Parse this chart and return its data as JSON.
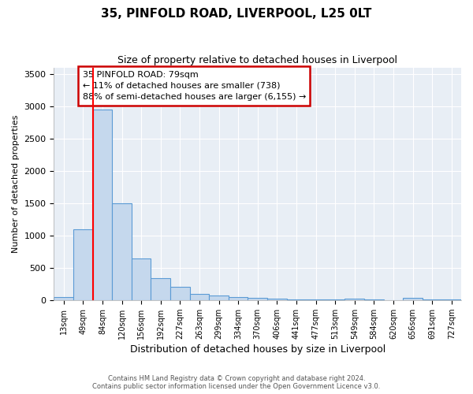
{
  "title": "35, PINFOLD ROAD, LIVERPOOL, L25 0LT",
  "subtitle": "Size of property relative to detached houses in Liverpool",
  "xlabel": "Distribution of detached houses by size in Liverpool",
  "ylabel": "Number of detached properties",
  "bin_labels": [
    "13sqm",
    "49sqm",
    "84sqm",
    "120sqm",
    "156sqm",
    "192sqm",
    "227sqm",
    "263sqm",
    "299sqm",
    "334sqm",
    "370sqm",
    "406sqm",
    "441sqm",
    "477sqm",
    "513sqm",
    "549sqm",
    "584sqm",
    "620sqm",
    "656sqm",
    "691sqm",
    "727sqm"
  ],
  "bar_heights": [
    50,
    1100,
    2950,
    1500,
    640,
    340,
    210,
    100,
    70,
    50,
    40,
    20,
    15,
    10,
    8,
    25,
    5,
    3,
    30,
    5,
    5
  ],
  "bar_color": "#c5d8ed",
  "bar_edge_color": "#5b9bd5",
  "annotation_text_line1": "35 PINFOLD ROAD: 79sqm",
  "annotation_text_line2": "← 11% of detached houses are smaller (738)",
  "annotation_text_line3": "88% of semi-detached houses are larger (6,155) →",
  "annotation_border_color": "#cc0000",
  "ylim": [
    0,
    3600
  ],
  "yticks": [
    0,
    500,
    1000,
    1500,
    2000,
    2500,
    3000,
    3500
  ],
  "background_color": "#e8eef5",
  "grid_color": "#ffffff",
  "footer_line1": "Contains HM Land Registry data © Crown copyright and database right 2024.",
  "footer_line2": "Contains public sector information licensed under the Open Government Licence v3.0."
}
